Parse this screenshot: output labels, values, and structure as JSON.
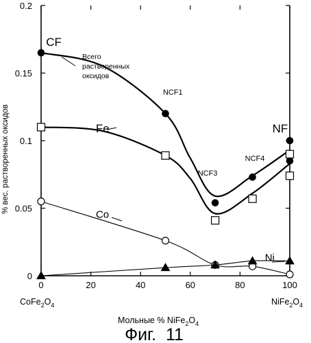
{
  "chart_data": {
    "type": "line",
    "title": "",
    "xlabel": "Мольные % NiFe",
    "xlabel_sub1": "2",
    "xlabel_mid": "O",
    "xlabel_sub2": "4",
    "ylabel": "% вес. растворенных оксидов",
    "xlim": [
      0,
      100
    ],
    "ylim": [
      0,
      0.2
    ],
    "x_ticks": [
      "0",
      "20",
      "40",
      "60",
      "80",
      "100"
    ],
    "y_ticks": [
      "0",
      "0.05",
      "0.1",
      "0.15",
      "0.2"
    ],
    "x_end_labels": {
      "left": {
        "base": "CoFe",
        "sub1": "2",
        "mid": "O",
        "sub2": "4"
      },
      "right": {
        "base": "NiFe",
        "sub1": "2",
        "mid": "O",
        "sub2": "4"
      }
    },
    "series": [
      {
        "name": "Всего растворенных оксидов",
        "marker": "filled-circle",
        "points": [
          [
            0,
            0.165
          ],
          [
            50,
            0.12
          ],
          [
            70,
            0.054
          ],
          [
            85,
            0.073
          ],
          [
            100,
            0.1
          ],
          [
            100,
            0.085
          ]
        ],
        "curve": [
          [
            0,
            0.165
          ],
          [
            25,
            0.155
          ],
          [
            50,
            0.12
          ],
          [
            60,
            0.087
          ],
          [
            70,
            0.059
          ],
          [
            85,
            0.074
          ],
          [
            100,
            0.093
          ]
        ]
      },
      {
        "name": "Fe",
        "marker": "open-square",
        "points": [
          [
            0,
            0.11
          ],
          [
            50,
            0.089
          ],
          [
            70,
            0.041
          ],
          [
            85,
            0.057
          ],
          [
            100,
            0.09
          ],
          [
            100,
            0.074
          ]
        ],
        "curve": [
          [
            0,
            0.11
          ],
          [
            25,
            0.107
          ],
          [
            50,
            0.089
          ],
          [
            60,
            0.072
          ],
          [
            70,
            0.046
          ],
          [
            85,
            0.061
          ],
          [
            100,
            0.083
          ]
        ]
      },
      {
        "name": "Co",
        "marker": "open-circle",
        "points": [
          [
            0,
            0.055
          ],
          [
            50,
            0.026
          ],
          [
            70,
            0.008
          ],
          [
            85,
            0.007
          ],
          [
            100,
            0.001
          ]
        ],
        "curve": [
          [
            0,
            0.055
          ],
          [
            50,
            0.026
          ],
          [
            70,
            0.008
          ],
          [
            85,
            0.007
          ],
          [
            100,
            0.001
          ]
        ]
      },
      {
        "name": "Ni",
        "marker": "filled-triangle",
        "points": [
          [
            0,
            0.0
          ],
          [
            50,
            0.006
          ],
          [
            70,
            0.008
          ],
          [
            85,
            0.011
          ],
          [
            100,
            0.011
          ]
        ],
        "curve": [
          [
            0,
            0.0
          ],
          [
            50,
            0.006
          ],
          [
            70,
            0.008
          ],
          [
            85,
            0.011
          ],
          [
            100,
            0.011
          ]
        ]
      }
    ],
    "annotations": [
      {
        "text": "CF",
        "x": 2,
        "y": 0.17
      },
      {
        "text": "NF",
        "x": 93,
        "y": 0.106
      },
      {
        "text": "NCF1",
        "x": 49,
        "y": 0.134
      },
      {
        "text": "NCF3",
        "x": 63,
        "y": 0.074
      },
      {
        "text": "NCF4",
        "x": 82,
        "y": 0.085
      },
      {
        "text": "Fe",
        "x": 22,
        "y": 0.106
      },
      {
        "text": "Co",
        "x": 22,
        "y": 0.043
      },
      {
        "text": "Ni",
        "x": 90,
        "y": 0.011
      }
    ],
    "legend_text_lines": [
      "Всего",
      "растворенных",
      "оксидов"
    ],
    "figure_caption": "Фиг.  11"
  }
}
